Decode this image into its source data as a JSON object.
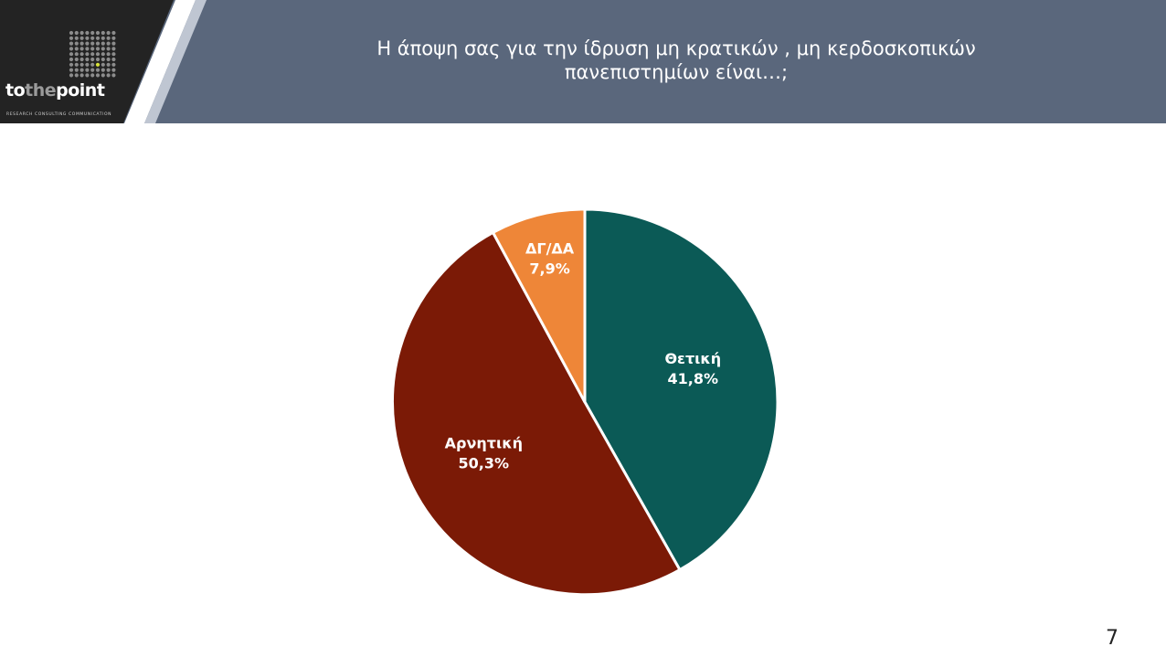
{
  "header": {
    "title_line1": "Η άποψη σας για την ίδρυση μη κρατικών , μη κερδοσκοπικών",
    "title_line2": "πανεπιστημίων είναι…;",
    "band_color": "#5a677c"
  },
  "logo": {
    "word_part1": "to",
    "word_part2": "the",
    "word_part3": "point",
    "tagline": "RESEARCH CONSULTING COMMUNICATION"
  },
  "chart_data": {
    "type": "pie",
    "slices": [
      {
        "label": "Θετική",
        "value": 41.8,
        "display": "41,8%",
        "color": "#0b5a56"
      },
      {
        "label": "Αρνητική",
        "value": 50.3,
        "display": "50,3%",
        "color": "#7b1a06"
      },
      {
        "label": "ΔΓ/ΔΑ",
        "value": 7.9,
        "display": "7,9%",
        "color": "#ee8638"
      }
    ],
    "start": "12 o'clock",
    "direction": "clockwise"
  },
  "footer": {
    "page_number": "7"
  }
}
